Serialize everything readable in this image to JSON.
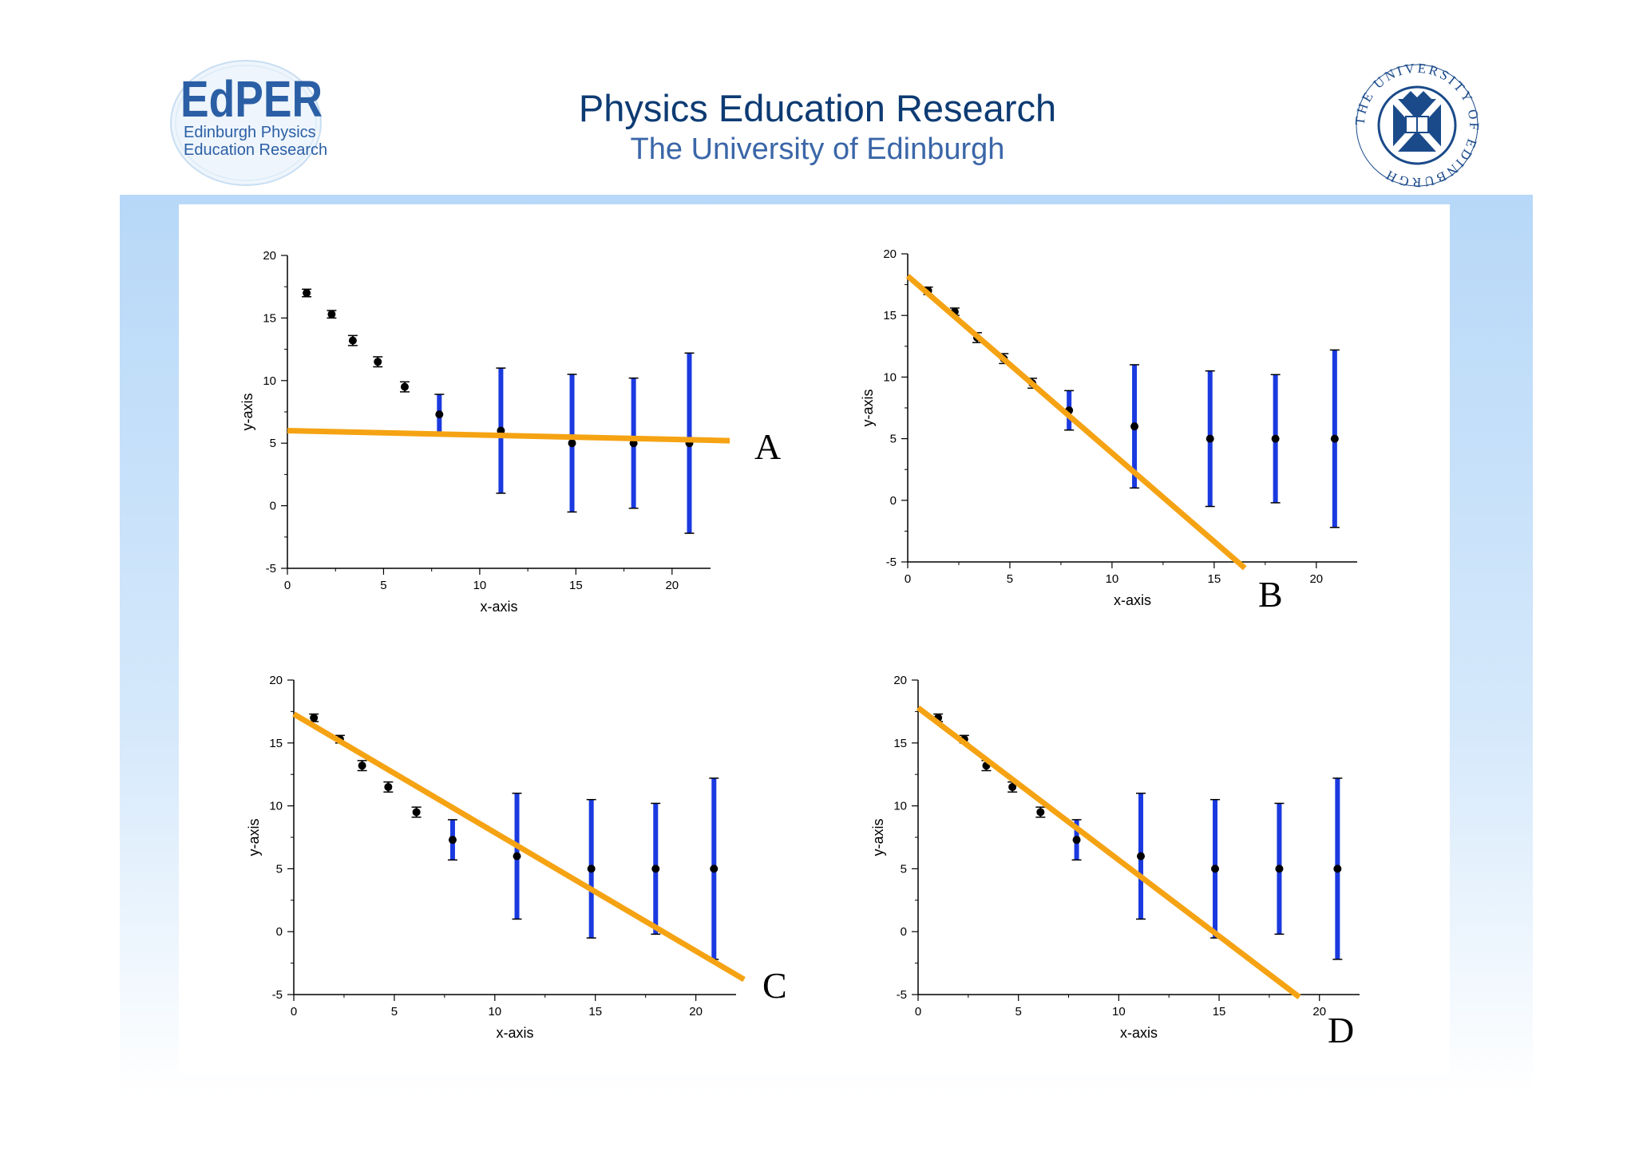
{
  "header": {
    "title": "Physics Education Research",
    "subtitle": "The University of Edinburgh"
  },
  "logo_left": {
    "name": "EdPER",
    "line1": "Edinburgh Physics",
    "line2": "Education Research",
    "color": "#2b5fa5"
  },
  "logo_right": {
    "text": "THE UNIVERSITY OF EDINBURGH",
    "color": "#1a4a8a"
  },
  "colors": {
    "fit": "#f5a313",
    "errorbar": "#1a3ae0",
    "point": "#000000"
  },
  "chart_data": [
    {
      "type": "scatter",
      "label": "A",
      "xlabel": "x-axis",
      "ylabel": "y-axis",
      "xlim": [
        0,
        22
      ],
      "ylim": [
        -5,
        20
      ],
      "xticks": [
        0,
        5,
        10,
        15,
        20
      ],
      "yticks": [
        -5,
        0,
        5,
        10,
        15,
        20
      ],
      "points": [
        {
          "x": 1,
          "y": 17,
          "err": 0.3
        },
        {
          "x": 2.3,
          "y": 15.3,
          "err": 0.3
        },
        {
          "x": 3.4,
          "y": 13.2,
          "err": 0.4
        },
        {
          "x": 4.7,
          "y": 11.5,
          "err": 0.4
        },
        {
          "x": 6.1,
          "y": 9.5,
          "err": 0.4
        },
        {
          "x": 7.9,
          "y": 7.3,
          "err": 1.6
        },
        {
          "x": 11.1,
          "y": 6,
          "err": 5
        },
        {
          "x": 14.8,
          "y": 5,
          "err": 5.5
        },
        {
          "x": 18,
          "y": 5,
          "err": 5.2
        },
        {
          "x": 20.9,
          "y": 5,
          "err": 7.2
        }
      ],
      "fit": {
        "x1": 0,
        "y1": 6,
        "x2": 23,
        "y2": 5.2
      }
    },
    {
      "type": "scatter",
      "label": "B",
      "xlabel": "x-axis",
      "ylabel": "y-axis",
      "xlim": [
        0,
        22
      ],
      "ylim": [
        -5,
        20
      ],
      "xticks": [
        0,
        5,
        10,
        15,
        20
      ],
      "yticks": [
        -5,
        0,
        5,
        10,
        15,
        20
      ],
      "points": [
        {
          "x": 1,
          "y": 17,
          "err": 0.3
        },
        {
          "x": 2.3,
          "y": 15.3,
          "err": 0.3
        },
        {
          "x": 3.4,
          "y": 13.2,
          "err": 0.4
        },
        {
          "x": 4.7,
          "y": 11.5,
          "err": 0.4
        },
        {
          "x": 6.1,
          "y": 9.5,
          "err": 0.4
        },
        {
          "x": 7.9,
          "y": 7.3,
          "err": 1.6
        },
        {
          "x": 11.1,
          "y": 6,
          "err": 5
        },
        {
          "x": 14.8,
          "y": 5,
          "err": 5.5
        },
        {
          "x": 18,
          "y": 5,
          "err": 5.2
        },
        {
          "x": 20.9,
          "y": 5,
          "err": 7.2
        }
      ],
      "fit": {
        "x1": 0,
        "y1": 18.2,
        "x2": 16.5,
        "y2": -5.5
      }
    },
    {
      "type": "scatter",
      "label": "C",
      "xlabel": "x-axis",
      "ylabel": "y-axis",
      "xlim": [
        0,
        22
      ],
      "ylim": [
        -5,
        20
      ],
      "xticks": [
        0,
        5,
        10,
        15,
        20
      ],
      "yticks": [
        -5,
        0,
        5,
        10,
        15,
        20
      ],
      "points": [
        {
          "x": 1,
          "y": 17,
          "err": 0.3
        },
        {
          "x": 2.3,
          "y": 15.3,
          "err": 0.3
        },
        {
          "x": 3.4,
          "y": 13.2,
          "err": 0.4
        },
        {
          "x": 4.7,
          "y": 11.5,
          "err": 0.4
        },
        {
          "x": 6.1,
          "y": 9.5,
          "err": 0.4
        },
        {
          "x": 7.9,
          "y": 7.3,
          "err": 1.6
        },
        {
          "x": 11.1,
          "y": 6,
          "err": 5
        },
        {
          "x": 14.8,
          "y": 5,
          "err": 5.5
        },
        {
          "x": 18,
          "y": 5,
          "err": 5.2
        },
        {
          "x": 20.9,
          "y": 5,
          "err": 7.2
        }
      ],
      "fit": {
        "x1": 0,
        "y1": 17.3,
        "x2": 22.4,
        "y2": -3.8
      }
    },
    {
      "type": "scatter",
      "label": "D",
      "xlabel": "x-axis",
      "ylabel": "y-axis",
      "xlim": [
        0,
        22
      ],
      "ylim": [
        -5,
        20
      ],
      "xticks": [
        0,
        5,
        10,
        15,
        20
      ],
      "yticks": [
        -5,
        0,
        5,
        10,
        15,
        20
      ],
      "points": [
        {
          "x": 1,
          "y": 17,
          "err": 0.3
        },
        {
          "x": 2.3,
          "y": 15.3,
          "err": 0.3
        },
        {
          "x": 3.4,
          "y": 13.2,
          "err": 0.4
        },
        {
          "x": 4.7,
          "y": 11.5,
          "err": 0.4
        },
        {
          "x": 6.1,
          "y": 9.5,
          "err": 0.4
        },
        {
          "x": 7.9,
          "y": 7.3,
          "err": 1.6
        },
        {
          "x": 11.1,
          "y": 6,
          "err": 5
        },
        {
          "x": 14.8,
          "y": 5,
          "err": 5.5
        },
        {
          "x": 18,
          "y": 5,
          "err": 5.2
        },
        {
          "x": 20.9,
          "y": 5,
          "err": 7.2
        }
      ],
      "fit": {
        "x1": 0,
        "y1": 17.8,
        "x2": 19,
        "y2": -5.2
      }
    }
  ]
}
